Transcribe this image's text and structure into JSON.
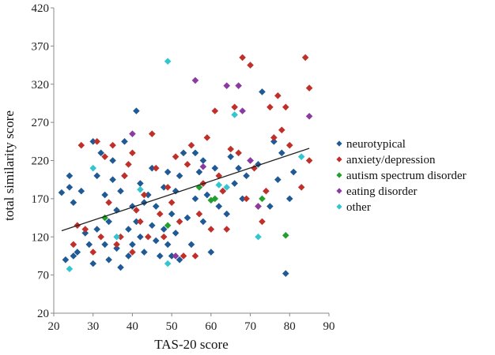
{
  "chart_data": {
    "type": "scatter",
    "title": "",
    "xlabel": "TAS-20 score",
    "ylabel": "total similarity score",
    "xlim": [
      20,
      90
    ],
    "ylim": [
      20,
      420
    ],
    "xticks": [
      20,
      30,
      40,
      50,
      60,
      70,
      80,
      90
    ],
    "yticks": [
      20,
      70,
      120,
      170,
      220,
      270,
      320,
      370,
      420
    ],
    "grid": false,
    "legend_position": "right",
    "trendline": {
      "x": [
        22,
        85
      ],
      "y": [
        128,
        236
      ],
      "color": "#222222"
    },
    "series": [
      {
        "name": "neurotypical",
        "color": "#1f5a96",
        "x": [
          22,
          23,
          24,
          24,
          25,
          25,
          26,
          27,
          28,
          29,
          30,
          30,
          31,
          31,
          32,
          33,
          33,
          34,
          34,
          35,
          35,
          36,
          36,
          37,
          37,
          38,
          38,
          39,
          39,
          40,
          40,
          41,
          41,
          42,
          42,
          43,
          43,
          44,
          45,
          45,
          46,
          46,
          47,
          48,
          48,
          49,
          49,
          50,
          50,
          51,
          51,
          52,
          52,
          53,
          54,
          55,
          56,
          56,
          57,
          58,
          58,
          59,
          60,
          61,
          62,
          63,
          64,
          65,
          66,
          67,
          68,
          69,
          70,
          72,
          73,
          75,
          76,
          77,
          78,
          79,
          80,
          81
        ],
        "y": [
          178,
          90,
          200,
          185,
          95,
          165,
          100,
          180,
          125,
          110,
          245,
          85,
          200,
          130,
          230,
          110,
          175,
          90,
          140,
          220,
          195,
          105,
          155,
          180,
          80,
          200,
          245,
          130,
          95,
          160,
          110,
          285,
          140,
          190,
          120,
          165,
          100,
          175,
          135,
          210,
          115,
          160,
          95,
          185,
          130,
          205,
          110,
          150,
          95,
          180,
          125,
          200,
          90,
          230,
          145,
          110,
          170,
          230,
          205,
          140,
          220,
          175,
          100,
          210,
          160,
          180,
          150,
          225,
          190,
          210,
          170,
          200,
          220,
          215,
          310,
          160,
          245,
          195,
          230,
          72,
          170,
          205
        ]
      },
      {
        "name": "anxiety/depression",
        "color": "#c0302a",
        "x": [
          25,
          26,
          27,
          28,
          30,
          31,
          32,
          33,
          34,
          35,
          36,
          37,
          38,
          39,
          40,
          40,
          41,
          42,
          43,
          44,
          45,
          46,
          47,
          48,
          49,
          50,
          51,
          52,
          53,
          54,
          55,
          56,
          57,
          58,
          59,
          60,
          61,
          62,
          63,
          64,
          65,
          66,
          67,
          68,
          69,
          70,
          71,
          72,
          73,
          74,
          75,
          76,
          77,
          78,
          79,
          80,
          83,
          84,
          85,
          85
        ],
        "y": [
          110,
          135,
          240,
          130,
          100,
          245,
          120,
          225,
          165,
          240,
          110,
          120,
          200,
          215,
          230,
          100,
          155,
          140,
          175,
          120,
          255,
          210,
          150,
          120,
          185,
          165,
          225,
          140,
          95,
          215,
          240,
          95,
          150,
          190,
          250,
          130,
          285,
          200,
          180,
          130,
          235,
          290,
          230,
          355,
          170,
          345,
          210,
          160,
          140,
          180,
          290,
          250,
          305,
          260,
          290,
          240,
          185,
          355,
          315,
          220
        ]
      },
      {
        "name": "autism spectrum disorder",
        "color": "#22a02e",
        "x": [
          33,
          49,
          57,
          60,
          61,
          73,
          79
        ],
        "y": [
          145,
          135,
          185,
          168,
          170,
          170,
          122
        ]
      },
      {
        "name": "eating disorder",
        "color": "#8a3aa0",
        "x": [
          40,
          51,
          56,
          58,
          64,
          67,
          68,
          70,
          72,
          85
        ],
        "y": [
          255,
          95,
          325,
          212,
          318,
          318,
          285,
          220,
          160,
          278
        ]
      },
      {
        "name": "other",
        "color": "#33c6d1",
        "x": [
          24,
          30,
          36,
          42,
          49,
          49,
          62,
          64,
          66,
          72,
          83
        ],
        "y": [
          78,
          210,
          120,
          182,
          350,
          85,
          188,
          185,
          280,
          120,
          225
        ]
      }
    ]
  }
}
